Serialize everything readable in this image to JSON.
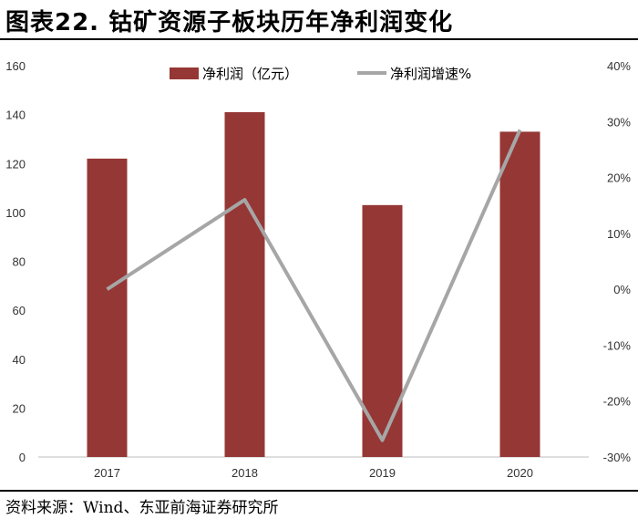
{
  "title": "图表22. 钴矿资源子板块历年净利润变化",
  "source": "资料来源：Wind、东亚前海证券研究所",
  "chart_data": {
    "type": "bar",
    "categories": [
      "2017",
      "2018",
      "2019",
      "2020"
    ],
    "series": [
      {
        "name": "净利润（亿元）",
        "type": "bar",
        "axis": "left",
        "color": "#953735",
        "values": [
          122,
          141,
          103,
          133
        ]
      },
      {
        "name": "净利润增速%",
        "type": "line",
        "axis": "right",
        "color": "#a6a6a6",
        "values": [
          0,
          16,
          -27,
          28.5
        ]
      }
    ],
    "y_left": {
      "min": 0,
      "max": 160,
      "ticks": [
        "0",
        "20",
        "40",
        "60",
        "80",
        "100",
        "120",
        "140",
        "160"
      ]
    },
    "y_right": {
      "min": -30,
      "max": 40,
      "ticks": [
        "-30%",
        "-20%",
        "-10%",
        "0%",
        "10%",
        "20%",
        "30%",
        "40%"
      ]
    },
    "legend_position": "top-center",
    "grid": false
  }
}
